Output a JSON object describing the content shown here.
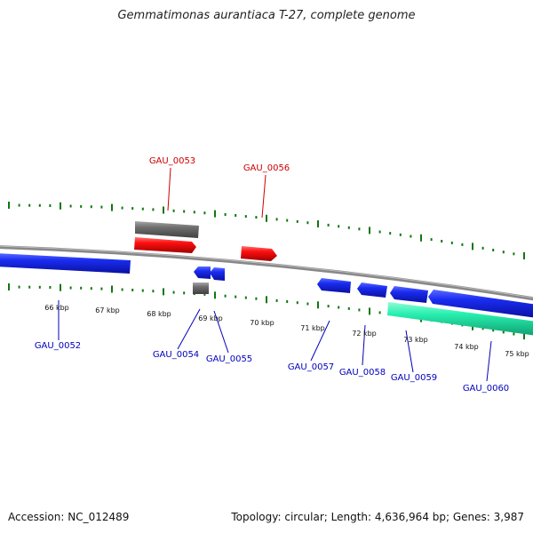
{
  "title": "Gemmatimonas aurantiaca T-27, complete genome",
  "footer": {
    "accession": "Accession: NC_012489",
    "summary": "Topology: circular; Length: 4,636,964 bp; Genes: 3,987"
  },
  "colors": {
    "forward_cds": "#ee0000",
    "reverse_cds": "#0000dd",
    "rna": "#777777",
    "region": "#22e0a8",
    "ticks": "#117711",
    "backbone": "#888888",
    "forward_label": "#cc0000",
    "reverse_label": "#0000bb"
  },
  "scale_labels": [
    "66 kbp",
    "67 kbp",
    "68 kbp",
    "69 kbp",
    "70 kbp",
    "71 kbp",
    "72 kbp",
    "73 kbp",
    "74 kbp",
    "75 kbp"
  ],
  "gene_labels": {
    "forward": [
      "GAU_0053",
      "GAU_0056"
    ],
    "reverse": [
      "GAU_0052",
      "GAU_0054",
      "GAU_0055",
      "GAU_0057",
      "GAU_0058",
      "GAU_0059",
      "GAU_0060"
    ]
  }
}
